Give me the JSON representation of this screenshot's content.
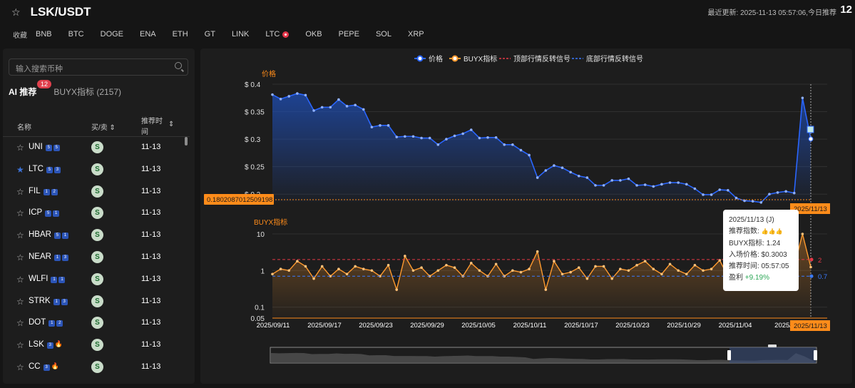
{
  "header": {
    "title": "LSK/USDT",
    "last_update": "最近更新: 2025-11-13 05:57:06,今日推荐",
    "today_count": "12"
  },
  "favorites": {
    "label": "收藏",
    "symbols": [
      "BNB",
      "BTC",
      "DOGE",
      "ENA",
      "ETH",
      "GT",
      "LINK",
      "LTC",
      "OKB",
      "PEPE",
      "SOL",
      "XRP"
    ]
  },
  "sidebar": {
    "search_placeholder": "输入搜索币种",
    "tab_ai": "AI 推荐",
    "tab_ai_count": "12",
    "tab_buyx": "BUYX指标 (2157)",
    "col_name": "名称",
    "col_buysell": "买/卖 ⇕",
    "col_time_1": "推荐时",
    "col_time_2": "间",
    "col_time_sort": "⇕",
    "rows": [
      {
        "name": "UNI",
        "tags": [
          "5",
          "5"
        ],
        "time": "11-13",
        "starred": false
      },
      {
        "name": "LTC",
        "tags": [
          "5",
          "3"
        ],
        "time": "11-13",
        "starred": true
      },
      {
        "name": "FIL",
        "tags": [
          "1",
          "2"
        ],
        "time": "11-13",
        "starred": false
      },
      {
        "name": "ICP",
        "tags": [
          "5",
          "1"
        ],
        "time": "11-13",
        "starred": false
      },
      {
        "name": "HBAR",
        "tags": [
          "5",
          "1"
        ],
        "time": "11-13",
        "starred": false
      },
      {
        "name": "NEAR",
        "tags": [
          "1",
          "3"
        ],
        "time": "11-13",
        "starred": false
      },
      {
        "name": "WLFI",
        "tags": [
          "1",
          "1"
        ],
        "time": "11-13",
        "starred": false
      },
      {
        "name": "STRK",
        "tags": [
          "1",
          "3"
        ],
        "time": "11-13",
        "starred": false
      },
      {
        "name": "DOT",
        "tags": [
          "1",
          "2"
        ],
        "time": "11-13",
        "starred": false
      },
      {
        "name": "LSK",
        "tags": [
          "3",
          "🔥"
        ],
        "time": "11-13",
        "starred": false
      },
      {
        "name": "CC",
        "tags": [
          "3",
          "🔥"
        ],
        "time": "11-13",
        "starred": false
      }
    ],
    "buy_icon": "S"
  },
  "legend": [
    "价格",
    "BUYX指标",
    "顶部行情反转信号",
    "底部行情反转信号"
  ],
  "colors": {
    "price": "#2a66ff",
    "buyx": "#ff9a2e",
    "top_signal": "#e63946",
    "bottom_signal": "#3a7bff",
    "accent": "#ff8c1a"
  },
  "chart_data": [
    {
      "type": "line",
      "title": "价格",
      "ytick_labels": [
        "$ 0.4",
        "$ 0.35",
        "$ 0.3",
        "$ 0.25",
        "$ 0.2"
      ],
      "ylim": [
        0.186,
        0.4
      ],
      "cursor_value": "0.1802087012509198",
      "x": [
        "2025/09/11",
        "",
        "",
        "",
        "",
        "",
        "",
        "",
        "",
        "",
        "",
        "",
        "",
        "",
        "",
        "",
        "",
        "",
        "",
        "",
        "",
        "",
        "",
        "",
        "",
        "",
        "",
        "",
        "",
        "",
        "",
        "",
        "",
        "",
        "",
        "",
        "",
        "",
        "",
        "",
        "",
        "",
        "",
        "",
        "",
        "",
        "",
        "",
        "",
        "",
        "",
        "",
        "",
        "",
        "",
        "",
        "",
        "",
        "",
        "",
        "",
        "",
        "",
        "",
        "",
        "2025/11/13"
      ],
      "series": [
        {
          "name": "价格",
          "values": [
            0.381,
            0.373,
            0.378,
            0.383,
            0.38,
            0.352,
            0.358,
            0.358,
            0.372,
            0.36,
            0.362,
            0.354,
            0.322,
            0.325,
            0.325,
            0.304,
            0.305,
            0.305,
            0.302,
            0.302,
            0.29,
            0.3,
            0.306,
            0.31,
            0.317,
            0.302,
            0.303,
            0.303,
            0.29,
            0.29,
            0.28,
            0.271,
            0.23,
            0.243,
            0.252,
            0.248,
            0.24,
            0.233,
            0.23,
            0.216,
            0.216,
            0.225,
            0.225,
            0.228,
            0.216,
            0.217,
            0.214,
            0.218,
            0.221,
            0.221,
            0.218,
            0.21,
            0.199,
            0.199,
            0.208,
            0.207,
            0.193,
            0.188,
            0.187,
            0.185,
            0.2,
            0.203,
            0.205,
            0.202,
            0.375,
            0.3003
          ]
        }
      ]
    },
    {
      "type": "line",
      "title": "BUYX指标",
      "ytick_labels": [
        "10",
        "1",
        "0.1",
        "0.05"
      ],
      "xtick_labels": [
        "2025/09/11",
        "2025/09/17",
        "2025/09/23",
        "2025/09/29",
        "2025/10/05",
        "2025/10/11",
        "2025/10/17",
        "2025/10/23",
        "2025/10/29",
        "2025/11/04",
        "2025/11"
      ],
      "cursor_date": "2025/11/13",
      "reference_lines": [
        {
          "name": "顶部行情反转信号",
          "value": "2"
        },
        {
          "name": "底部行情反转信号",
          "value": "0.7"
        }
      ],
      "series": [
        {
          "name": "BUYX指标",
          "values": [
            0.8,
            1.1,
            1.0,
            1.8,
            1.3,
            0.6,
            1.3,
            0.7,
            1.1,
            0.8,
            1.3,
            1.1,
            1.0,
            0.7,
            1.4,
            0.3,
            2.5,
            1.0,
            1.2,
            0.7,
            1.0,
            1.4,
            1.2,
            0.7,
            1.6,
            1.0,
            0.7,
            1.5,
            0.7,
            1.0,
            0.9,
            1.1,
            3.3,
            0.3,
            1.8,
            0.8,
            0.9,
            1.2,
            0.6,
            1.3,
            1.3,
            0.6,
            1.1,
            1.0,
            1.4,
            1.8,
            1.1,
            0.8,
            1.5,
            1.0,
            0.8,
            1.4,
            1.0,
            1.1,
            1.9,
            0.7,
            1.2,
            1.8,
            1.1,
            0.8,
            0.7,
            0.9,
            1.1,
            1.3,
            10,
            1.24
          ]
        }
      ]
    }
  ],
  "tooltip": {
    "date": "2025/11/13 (J)",
    "score_label": "推荐指数:",
    "score_icons": "👍👍👍",
    "buyx": "BUYX指标: 1.24",
    "entry": "入场价格: $0.3003",
    "rec_time": "推荐时间: 05:57:05",
    "profit_label": "盈利",
    "profit": "+9.19%"
  }
}
